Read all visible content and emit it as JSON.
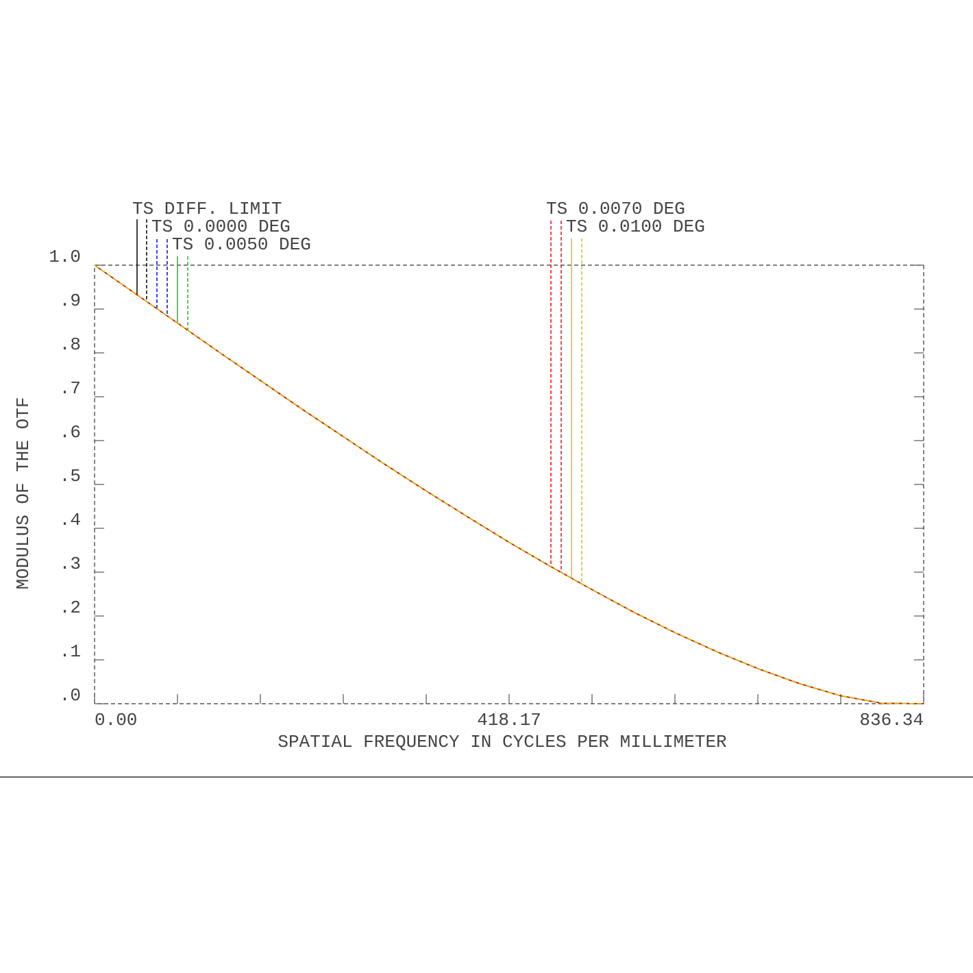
{
  "chart_data": {
    "type": "line",
    "xlabel": "SPATIAL FREQUENCY IN CYCLES PER MILLIMETER",
    "ylabel": "MODULUS OF THE OTF",
    "x": [
      0,
      41.817,
      83.634,
      125.451,
      167.268,
      209.085,
      250.902,
      292.719,
      334.536,
      376.353,
      418.17,
      459.987,
      501.804,
      543.621,
      585.438,
      627.255,
      669.072,
      710.889,
      752.706,
      794.523,
      836.34
    ],
    "series": [
      {
        "name": "TS DIFF. LIMIT",
        "color": "#000000",
        "values": [
          1.0,
          0.934,
          0.868,
          0.802,
          0.737,
          0.672,
          0.609,
          0.546,
          0.485,
          0.426,
          0.368,
          0.313,
          0.26,
          0.209,
          0.162,
          0.119,
          0.08,
          0.046,
          0.018,
          0.001,
          0
        ]
      },
      {
        "name": "TS 0.0000 DEG",
        "color": "#0000ff",
        "values": [
          1.0,
          0.934,
          0.868,
          0.802,
          0.737,
          0.672,
          0.609,
          0.546,
          0.485,
          0.426,
          0.368,
          0.313,
          0.26,
          0.209,
          0.162,
          0.119,
          0.08,
          0.046,
          0.018,
          0.001,
          0
        ]
      },
      {
        "name": "TS 0.0050 DEG",
        "color": "#00cc00",
        "values": [
          1.0,
          0.934,
          0.868,
          0.802,
          0.737,
          0.672,
          0.609,
          0.546,
          0.485,
          0.426,
          0.368,
          0.313,
          0.26,
          0.209,
          0.162,
          0.119,
          0.08,
          0.046,
          0.018,
          0.001,
          0
        ]
      },
      {
        "name": "TS 0.0070 DEG",
        "color": "#ff0000",
        "values": [
          1.0,
          0.934,
          0.868,
          0.802,
          0.737,
          0.672,
          0.609,
          0.546,
          0.485,
          0.426,
          0.368,
          0.313,
          0.26,
          0.209,
          0.162,
          0.119,
          0.08,
          0.046,
          0.018,
          0.001,
          0
        ]
      },
      {
        "name": "TS 0.0100 DEG",
        "color": "#d4c400",
        "values": [
          1.0,
          0.934,
          0.868,
          0.802,
          0.737,
          0.672,
          0.609,
          0.546,
          0.485,
          0.426,
          0.368,
          0.313,
          0.26,
          0.209,
          0.162,
          0.119,
          0.08,
          0.046,
          0.018,
          0.001,
          0
        ]
      }
    ],
    "xlim": [
      0,
      836.34
    ],
    "ylim": [
      0,
      1
    ],
    "xticks": [
      {
        "value": 0,
        "label": "0.00"
      },
      {
        "value": 83.634,
        "label": null
      },
      {
        "value": 167.268,
        "label": null
      },
      {
        "value": 250.902,
        "label": null
      },
      {
        "value": 334.536,
        "label": null
      },
      {
        "value": 418.17,
        "label": "418.17"
      },
      {
        "value": 501.804,
        "label": null
      },
      {
        "value": 585.438,
        "label": null
      },
      {
        "value": 669.072,
        "label": null
      },
      {
        "value": 752.706,
        "label": null
      },
      {
        "value": 836.34,
        "label": "836.34"
      }
    ],
    "yticks": [
      {
        "value": 0,
        "label": ".0"
      },
      {
        "value": 0.1,
        "label": ".1"
      },
      {
        "value": 0.2,
        "label": ".2"
      },
      {
        "value": 0.3,
        "label": ".3"
      },
      {
        "value": 0.4,
        "label": ".4"
      },
      {
        "value": 0.5,
        "label": ".5"
      },
      {
        "value": 0.6,
        "label": ".6"
      },
      {
        "value": 0.7,
        "label": ".7"
      },
      {
        "value": 0.8,
        "label": ".8"
      },
      {
        "value": 0.9,
        "label": ".9"
      },
      {
        "value": 1,
        "label": "1.0"
      }
    ]
  }
}
